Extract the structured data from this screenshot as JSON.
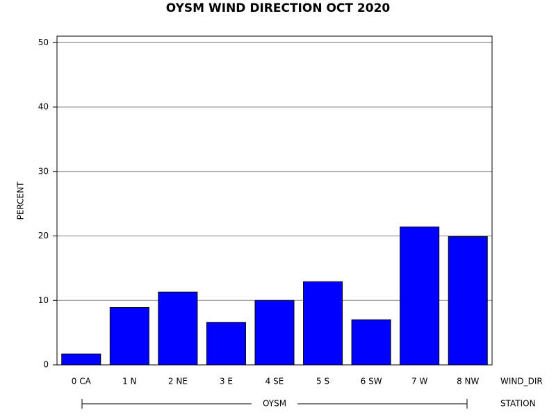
{
  "chart_data": {
    "type": "bar",
    "title": "OYSM WIND DIRECTION OCT 2020",
    "y_label": "PERCENT",
    "x_label": "WIND_DIR",
    "group_label": "STATION",
    "group": "OYSM",
    "categories": [
      "0 CA",
      "1 N",
      "2 NE",
      "3 E",
      "4 SE",
      "5 S",
      "6 SW",
      "7 W",
      "8 NW"
    ],
    "values": [
      1.7,
      8.9,
      11.3,
      6.6,
      10.0,
      12.9,
      7.0,
      21.4,
      19.9
    ],
    "color": "#0000ff",
    "ylim": [
      0,
      51
    ],
    "yticks": [
      0,
      10,
      20,
      30,
      40,
      50
    ],
    "grid": true
  }
}
